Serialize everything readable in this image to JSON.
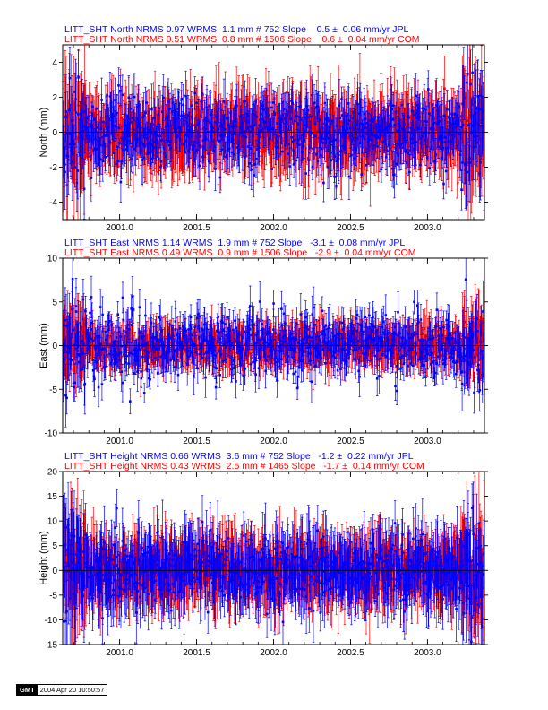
{
  "colors": {
    "jpl": "#0000ff",
    "com": "#ff0000",
    "axis": "#000000"
  },
  "chart_data": [
    {
      "type": "scatter",
      "ylabel": "North (mm)",
      "xlim": [
        2000.63,
        2003.37
      ],
      "ylim": [
        -5,
        5
      ],
      "xticks": [
        2001.0,
        2001.5,
        2002.0,
        2002.5,
        2003.0
      ],
      "xtick_labels": [
        "2001.0",
        "2001.5",
        "2002.0",
        "2002.5",
        "2003.0"
      ],
      "yticks": [
        -4,
        -2,
        0,
        2,
        4
      ],
      "ytick_labels": [
        "-4",
        "-2",
        "0",
        "2",
        "4"
      ],
      "header": [
        "LITT_SHT North NRMS 0.97 WRMS  1.1 mm # 752 Slope    0.5 ±  0.06 mm/yr JPL",
        "LITT_SHT North NRMS 0.51 WRMS  0.8 mm # 1506 Slope    0.6 ±  0.04 mm/yr COM"
      ],
      "series": [
        {
          "name": "JPL",
          "color": "#0000ff",
          "nrms": 0.97,
          "wrms_mm": 1.1,
          "n": 752,
          "slope": 0.5,
          "slope_err": 0.06,
          "units": "mm/yr",
          "sigma_data": 1.1,
          "err_bar": 1.0
        },
        {
          "name": "COM",
          "color": "#ff0000",
          "nrms": 0.51,
          "wrms_mm": 0.8,
          "n": 1506,
          "slope": 0.6,
          "slope_err": 0.04,
          "units": "mm/yr",
          "sigma_data": 0.8,
          "err_bar": 1.6
        }
      ]
    },
    {
      "type": "scatter",
      "ylabel": "East (mm)",
      "xlim": [
        2000.63,
        2003.37
      ],
      "ylim": [
        -10,
        10
      ],
      "xticks": [
        2001.0,
        2001.5,
        2002.0,
        2002.5,
        2003.0
      ],
      "xtick_labels": [
        "2001.0",
        "2001.5",
        "2002.0",
        "2002.5",
        "2003.0"
      ],
      "yticks": [
        -10,
        -5,
        0,
        5,
        10
      ],
      "ytick_labels": [
        "-10",
        "-5",
        "0",
        "5",
        "10"
      ],
      "header": [
        "LITT_SHT East NRMS 1.14 WRMS  1.9 mm # 752 Slope   -3.1 ±  0.08 mm/yr JPL",
        "LITT_SHT East NRMS 0.49 WRMS  0.9 mm # 1506 Slope   -2.9 ±  0.04 mm/yr COM"
      ],
      "series": [
        {
          "name": "JPL",
          "color": "#0000ff",
          "nrms": 1.14,
          "wrms_mm": 1.9,
          "n": 752,
          "slope": -3.1,
          "slope_err": 0.08,
          "units": "mm/yr",
          "sigma_data": 1.9,
          "err_bar": 1.6
        },
        {
          "name": "COM",
          "color": "#ff0000",
          "nrms": 0.49,
          "wrms_mm": 0.9,
          "n": 1506,
          "slope": -2.9,
          "slope_err": 0.04,
          "units": "mm/yr",
          "sigma_data": 0.9,
          "err_bar": 1.9
        }
      ]
    },
    {
      "type": "scatter",
      "ylabel": "Height (mm)",
      "xlim": [
        2000.63,
        2003.37
      ],
      "ylim": [
        -15,
        20
      ],
      "xticks": [
        2001.0,
        2001.5,
        2002.0,
        2002.5,
        2003.0
      ],
      "xtick_labels": [
        "2001.0",
        "2001.5",
        "2002.0",
        "2002.5",
        "2003.0"
      ],
      "yticks": [
        -15,
        -10,
        -5,
        0,
        5,
        10,
        15,
        20
      ],
      "ytick_labels": [
        "-15",
        "-10",
        "-5",
        "0",
        "5",
        "10",
        "15",
        "20"
      ],
      "header": [
        "LITT_SHT Height NRMS 0.66 WRMS  3.6 mm # 752 Slope   -1.2 ±  0.22 mm/yr JPL",
        "LITT_SHT Height NRMS 0.43 WRMS  2.5 mm # 1465 Slope   -1.7 ±  0.14 mm/yr COM"
      ],
      "series": [
        {
          "name": "JPL",
          "color": "#0000ff",
          "nrms": 0.66,
          "wrms_mm": 3.6,
          "n": 752,
          "slope": -1.2,
          "slope_err": 0.22,
          "units": "mm/yr",
          "sigma_data": 3.6,
          "err_bar": 5.0
        },
        {
          "name": "COM",
          "color": "#ff0000",
          "nrms": 0.43,
          "wrms_mm": 2.5,
          "n": 1465,
          "slope": -1.7,
          "slope_err": 0.14,
          "units": "mm/yr",
          "sigma_data": 2.5,
          "err_bar": 5.5
        }
      ]
    }
  ],
  "footer": {
    "logo_text": "GMT",
    "timestamp": "2004 Apr 20 10:50:57"
  }
}
